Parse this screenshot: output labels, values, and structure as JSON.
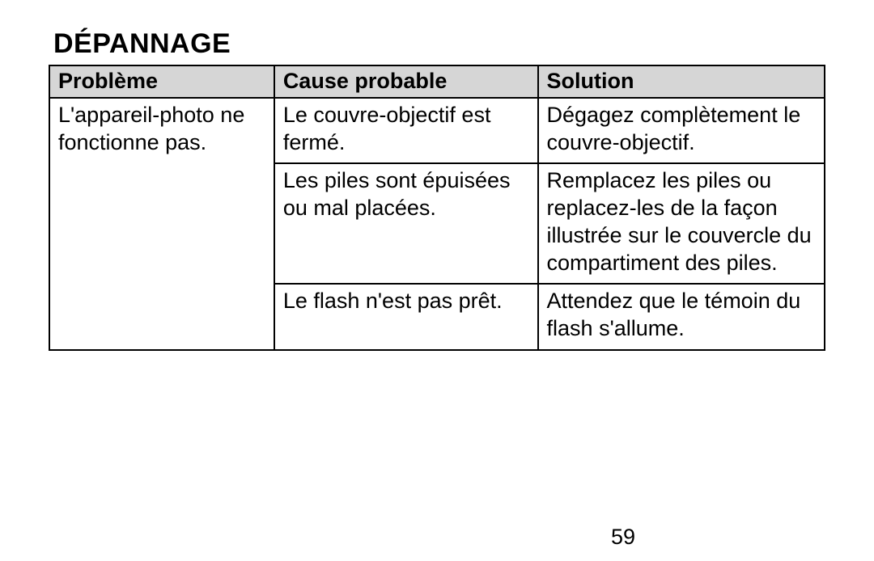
{
  "title": "DÉPANNAGE",
  "page_number": "59",
  "table": {
    "header_bg": "#d6d6d6",
    "border_color": "#000000",
    "columns": [
      "Problème",
      "Cause probable",
      "Solution"
    ],
    "rows": [
      {
        "problem": "L'appareil-photo ne fonctionne pas.",
        "cause": "Le couvre-objectif est fermé.",
        "solution": "Dégagez complètement le couvre-objectif."
      },
      {
        "problem": "",
        "cause": "Les piles sont épuisées ou mal placées.",
        "solution": "Remplacez les piles ou replacez-les de la façon illustrée sur le couvercle du compartiment des piles."
      },
      {
        "problem": "",
        "cause": "Le flash n'est pas prêt.",
        "solution": "Attendez que le témoin du flash s'allume."
      }
    ]
  }
}
